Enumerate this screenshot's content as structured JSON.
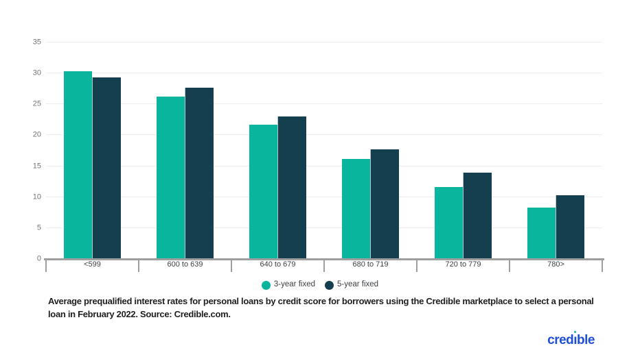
{
  "chart_data": {
    "type": "bar",
    "title": "",
    "xlabel": "",
    "ylabel": "",
    "categories": [
      "<599",
      "600 to 639",
      "640 to 679",
      "680 to 719",
      "720 to 779",
      "780>"
    ],
    "series": [
      {
        "name": "3-year fixed",
        "color": "#0ab59d",
        "values": [
          30.3,
          26.2,
          21.7,
          16.2,
          11.6,
          8.3
        ]
      },
      {
        "name": "5-year fixed",
        "color": "#143f4f",
        "values": [
          29.4,
          27.7,
          23.0,
          17.7,
          14.0,
          10.3
        ]
      }
    ],
    "ylim": [
      0,
      35
    ],
    "ytick_step": 5,
    "grid": true,
    "legend_position": "bottom-center"
  },
  "caption": "Average prequalified interest rates for personal loans by credit score for borrowers using the Credible marketplace to select a personal loan in February 2022. Source: Credible.com.",
  "logo": {
    "part1": "cred",
    "dotless_i": "ı",
    "part2": "ble"
  },
  "colors": {
    "grid": "#ececec",
    "axis": "#9e9e9e",
    "y_tick_label": "#757575",
    "x_tick_label": "#3c4043",
    "legend_text": "#3c4043",
    "caption_text": "#1f1f1f",
    "logo_blue": "#1e4fd8",
    "logo_dot": "#0ab59d",
    "background": "#ffffff"
  }
}
